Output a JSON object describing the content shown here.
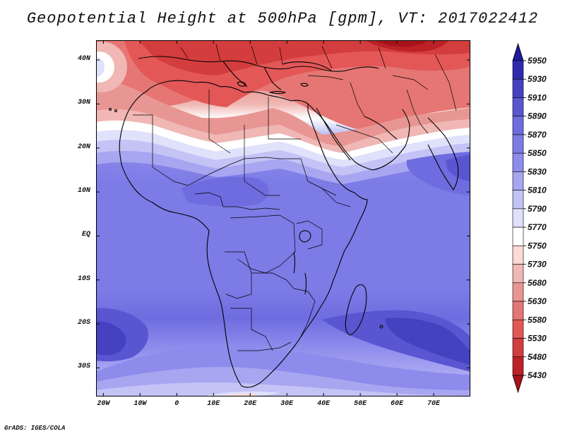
{
  "title": "Geopotential Height at 500hPa [gpm], VT: 2017022412",
  "credit": "GrADS: IGES/COLA",
  "axes": {
    "lat_labels": [
      "40N",
      "30N",
      "20N",
      "10N",
      "EQ",
      "10S",
      "20S",
      "30S"
    ],
    "lat_values": [
      40,
      30,
      20,
      10,
      0,
      -10,
      -20,
      -30
    ],
    "lon_labels": [
      "20W",
      "10W",
      "0",
      "10E",
      "20E",
      "30E",
      "40E",
      "50E",
      "60E",
      "70E"
    ],
    "lon_values": [
      -20,
      -10,
      0,
      10,
      20,
      30,
      40,
      50,
      60,
      70
    ],
    "lon_range": [
      -22,
      80
    ],
    "lat_range": [
      -36.5,
      44.5
    ]
  },
  "colorbar": {
    "levels": [
      5430,
      5480,
      5530,
      5580,
      5630,
      5680,
      5730,
      5750,
      5770,
      5790,
      5810,
      5830,
      5850,
      5870,
      5890,
      5910,
      5930,
      5950
    ],
    "level_labels": [
      "5430",
      "5480",
      "5530",
      "5580",
      "5630",
      "5680",
      "5730",
      "5750",
      "5770",
      "5790",
      "5810",
      "5830",
      "5850",
      "5870",
      "5890",
      "5910",
      "5930",
      "5950"
    ],
    "colors": [
      "#a8131a",
      "#bc2127",
      "#d43d3d",
      "#e35757",
      "#e57673",
      "#e89693",
      "#f0b7b4",
      "#fbdad8",
      "#ffffff",
      "#e0e1fb",
      "#c3c3f6",
      "#a8a6f1",
      "#8d8bec",
      "#7d7be6",
      "#6f6ce0",
      "#5a56d2",
      "#4541c0",
      "#2f2bb0",
      "#1d1a9c"
    ],
    "triangles": "both"
  },
  "map_data": {
    "field": "500hPa geopotential height",
    "units": "gpm",
    "valid_time": "2017022412",
    "region": "Africa, Middle East, Western Indian Ocean"
  }
}
